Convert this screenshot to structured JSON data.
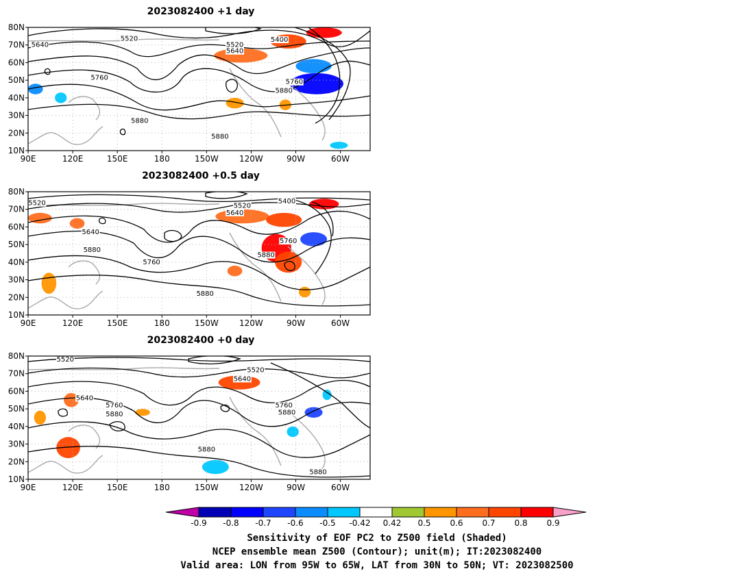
{
  "panels": [
    {
      "title": "2023082400  +1 day",
      "contour_labels": [
        {
          "text": "5520",
          "lon": 158,
          "lat": 73.5
        },
        {
          "text": "5640",
          "lon": 98,
          "lat": 70
        },
        {
          "text": "5400",
          "lon": -101,
          "lat": 73
        },
        {
          "text": "5520",
          "lon": -131,
          "lat": 70
        },
        {
          "text": "5640",
          "lon": -131,
          "lat": 66.5
        },
        {
          "text": "5760",
          "lon": 138,
          "lat": 51.5
        },
        {
          "text": "5760",
          "lon": -91,
          "lat": 49
        },
        {
          "text": "5880",
          "lon": -98,
          "lat": 44
        },
        {
          "text": "5880",
          "lon": 165,
          "lat": 27
        },
        {
          "text": "5880",
          "lon": -141,
          "lat": 18
        }
      ],
      "shading": [
        {
          "lon": -76,
          "lat": 48,
          "rx": 18,
          "ry": 6,
          "v": -0.8
        },
        {
          "lon": -78,
          "lat": 58,
          "rx": 12,
          "ry": 4,
          "v": -0.6
        },
        {
          "lon": -127,
          "lat": 64,
          "rx": 18,
          "ry": 4,
          "v": 0.6
        },
        {
          "lon": -95,
          "lat": 72,
          "rx": 12,
          "ry": 4,
          "v": 0.7
        },
        {
          "lon": -71,
          "lat": 77,
          "rx": 12,
          "ry": 3,
          "v": 0.8
        },
        {
          "lon": -131,
          "lat": 37,
          "rx": 6,
          "ry": 3,
          "v": 0.5
        },
        {
          "lon": 95,
          "lat": 45,
          "rx": 5,
          "ry": 3,
          "v": -0.6
        },
        {
          "lon": 112,
          "lat": 40,
          "rx": 4,
          "ry": 3,
          "v": -0.5
        },
        {
          "lon": -61,
          "lat": 13,
          "rx": 6,
          "ry": 2,
          "v": -0.5
        },
        {
          "lon": -97,
          "lat": 36,
          "rx": 4,
          "ry": 3,
          "v": 0.5
        }
      ]
    },
    {
      "title": "2023082400  +0.5 day",
      "contour_labels": [
        {
          "text": "5520",
          "lon": 96,
          "lat": 73.5
        },
        {
          "text": "5400",
          "lon": -96,
          "lat": 74.5
        },
        {
          "text": "5520",
          "lon": -126,
          "lat": 72
        },
        {
          "text": "5640",
          "lon": -131,
          "lat": 68
        },
        {
          "text": "5640",
          "lon": 132,
          "lat": 57
        },
        {
          "text": "5880",
          "lon": 133,
          "lat": 47
        },
        {
          "text": "5760",
          "lon": 173,
          "lat": 40
        },
        {
          "text": "5760",
          "lon": -95,
          "lat": 52
        },
        {
          "text": "5880",
          "lon": -110,
          "lat": 44
        },
        {
          "text": "5880",
          "lon": -151,
          "lat": 22
        }
      ],
      "shading": [
        {
          "lon": -103,
          "lat": 48,
          "rx": 10,
          "ry": 8,
          "v": 0.8
        },
        {
          "lon": -95,
          "lat": 40,
          "rx": 9,
          "ry": 6,
          "v": 0.7
        },
        {
          "lon": -78,
          "lat": 53,
          "rx": 9,
          "ry": 4,
          "v": -0.7
        },
        {
          "lon": -126,
          "lat": 66,
          "rx": 18,
          "ry": 4,
          "v": 0.6
        },
        {
          "lon": -98,
          "lat": 64,
          "rx": 12,
          "ry": 4,
          "v": 0.7
        },
        {
          "lon": -71,
          "lat": 73,
          "rx": 10,
          "ry": 3,
          "v": 0.8
        },
        {
          "lon": 98,
          "lat": 65,
          "rx": 8,
          "ry": 3,
          "v": 0.6
        },
        {
          "lon": 123,
          "lat": 62,
          "rx": 5,
          "ry": 3,
          "v": 0.6
        },
        {
          "lon": 104,
          "lat": 28,
          "rx": 5,
          "ry": 6,
          "v": 0.5
        },
        {
          "lon": -131,
          "lat": 35,
          "rx": 5,
          "ry": 3,
          "v": 0.6
        },
        {
          "lon": -84,
          "lat": 23,
          "rx": 4,
          "ry": 3,
          "v": 0.5
        }
      ]
    },
    {
      "title": "2023082400  +0 day",
      "contour_labels": [
        {
          "text": "5520",
          "lon": 115,
          "lat": 78
        },
        {
          "text": "5520",
          "lon": -117,
          "lat": 72
        },
        {
          "text": "5640",
          "lon": -126,
          "lat": 67
        },
        {
          "text": "5640",
          "lon": 128,
          "lat": 56
        },
        {
          "text": "5760",
          "lon": 148,
          "lat": 52
        },
        {
          "text": "5880",
          "lon": 148,
          "lat": 47
        },
        {
          "text": "5760",
          "lon": -98,
          "lat": 52
        },
        {
          "text": "5880",
          "lon": -96,
          "lat": 48
        },
        {
          "text": "5880",
          "lon": -150,
          "lat": 27
        },
        {
          "text": "5880",
          "lon": -75,
          "lat": 14
        }
      ],
      "shading": [
        {
          "lon": 117,
          "lat": 28,
          "rx": 8,
          "ry": 6,
          "v": 0.7
        },
        {
          "lon": 119,
          "lat": 55,
          "rx": 5,
          "ry": 4,
          "v": 0.6
        },
        {
          "lon": -128,
          "lat": 65,
          "rx": 14,
          "ry": 4,
          "v": 0.7
        },
        {
          "lon": -144,
          "lat": 17,
          "rx": 9,
          "ry": 4,
          "v": -0.5
        },
        {
          "lon": -78,
          "lat": 48,
          "rx": 6,
          "ry": 3,
          "v": -0.7
        },
        {
          "lon": -92,
          "lat": 37,
          "rx": 4,
          "ry": 3,
          "v": -0.5
        },
        {
          "lon": -69,
          "lat": 58,
          "rx": 3,
          "ry": 3,
          "v": -0.5
        },
        {
          "lon": 98,
          "lat": 45,
          "rx": 4,
          "ry": 4,
          "v": 0.5
        },
        {
          "lon": 167,
          "lat": 48,
          "rx": 5,
          "ry": 2,
          "v": 0.5
        }
      ]
    }
  ],
  "axes": {
    "x_ticks": [
      "90E",
      "120E",
      "150E",
      "180",
      "150W",
      "120W",
      "90W",
      "60W"
    ],
    "x_tick_lons": [
      90,
      120,
      150,
      180,
      210,
      240,
      270,
      300
    ],
    "y_ticks": [
      "10N",
      "20N",
      "30N",
      "40N",
      "50N",
      "60N",
      "70N",
      "80N"
    ],
    "y_tick_lats": [
      10,
      20,
      30,
      40,
      50,
      60,
      70,
      80
    ],
    "lon_range": [
      90,
      320
    ],
    "lat_range": [
      10,
      80
    ],
    "grid": true
  },
  "colorbar": {
    "tick_labels": [
      "-0.9",
      "-0.8",
      "-0.7",
      "-0.6",
      "-0.5",
      "-0.42",
      "0.42",
      "0.5",
      "0.6",
      "0.7",
      "0.8",
      "0.9"
    ],
    "low_arrow_color": "#c000a8",
    "high_arrow_color": "#f7a0c8",
    "bins": [
      {
        "color": "#0000b4"
      },
      {
        "color": "#0000ff"
      },
      {
        "color": "#1e46ff"
      },
      {
        "color": "#0a8cff"
      },
      {
        "color": "#00c8ff"
      },
      {
        "color": "#ffffff"
      },
      {
        "color": "#a0c832"
      },
      {
        "color": "#ff9600"
      },
      {
        "color": "#ff6e1e"
      },
      {
        "color": "#ff4600"
      },
      {
        "color": "#ff0000"
      }
    ]
  },
  "footer": {
    "line1": "Sensitivity of EOF PC2 to Z500 field (Shaded)",
    "line2": "NCEP ensemble mean Z500 (Contour); unit(m); IT:2023082400",
    "line3": "Valid area: LON from 95W to 65W, LAT from 30N to 50N; VT: 2023082500"
  },
  "chart_data": [
    {
      "type": "heatmap",
      "title": "2023082400  +1 day",
      "x_ticks": [
        "90E",
        "120E",
        "150E",
        "180",
        "150W",
        "120W",
        "90W",
        "60W"
      ],
      "y_ticks": [
        "10N",
        "20N",
        "30N",
        "40N",
        "50N",
        "60N",
        "70N",
        "80N"
      ],
      "contour_levels": [
        5400,
        5520,
        5640,
        5760,
        5880
      ],
      "color_levels": [
        -0.9,
        -0.8,
        -0.7,
        -0.6,
        -0.5,
        -0.42,
        0.42,
        0.5,
        0.6,
        0.7,
        0.8,
        0.9
      ]
    },
    {
      "type": "heatmap",
      "title": "2023082400  +0.5 day",
      "x_ticks": [
        "90E",
        "120E",
        "150E",
        "180",
        "150W",
        "120W",
        "90W",
        "60W"
      ],
      "y_ticks": [
        "10N",
        "20N",
        "30N",
        "40N",
        "50N",
        "60N",
        "70N",
        "80N"
      ],
      "contour_levels": [
        5400,
        5520,
        5640,
        5760,
        5880
      ],
      "color_levels": [
        -0.9,
        -0.8,
        -0.7,
        -0.6,
        -0.5,
        -0.42,
        0.42,
        0.5,
        0.6,
        0.7,
        0.8,
        0.9
      ]
    },
    {
      "type": "heatmap",
      "title": "2023082400  +0 day",
      "x_ticks": [
        "90E",
        "120E",
        "150E",
        "180",
        "150W",
        "120W",
        "90W",
        "60W"
      ],
      "y_ticks": [
        "10N",
        "20N",
        "30N",
        "40N",
        "50N",
        "60N",
        "70N",
        "80N"
      ],
      "contour_levels": [
        5520,
        5640,
        5760,
        5880
      ],
      "color_levels": [
        -0.9,
        -0.8,
        -0.7,
        -0.6,
        -0.5,
        -0.42,
        0.42,
        0.5,
        0.6,
        0.7,
        0.8,
        0.9
      ]
    }
  ]
}
